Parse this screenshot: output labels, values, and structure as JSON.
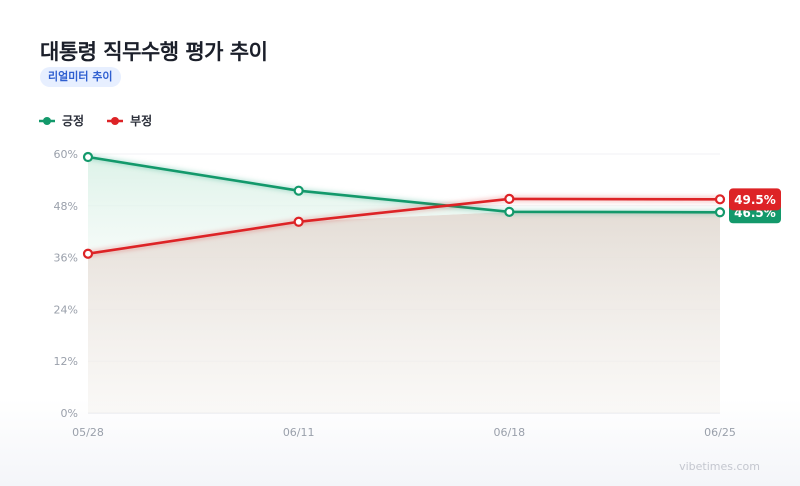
{
  "header": {
    "title": "대통령 직무수행 평가 추이",
    "badge": "리얼미터 추이"
  },
  "watermark": "vibetimes.com",
  "colors": {
    "positive": "#13996b",
    "negative": "#dd2326",
    "badge_bg": "#e7efff",
    "badge_text": "#2f5fd0"
  },
  "chart_data": {
    "type": "line",
    "title": "대통령 직무수행 평가 추이",
    "x": [
      "05/28",
      "06/11",
      "06/18",
      "06/25"
    ],
    "ylim": [
      0,
      60
    ],
    "y_ticks": [
      "0%",
      "12%",
      "24%",
      "36%",
      "48%",
      "60%"
    ],
    "y_tick_values": [
      0,
      12,
      24,
      36,
      48,
      60
    ],
    "grid": true,
    "legend": "top-left",
    "series": [
      {
        "name": "긍정",
        "color": "#13996b",
        "values": [
          59.3,
          51.5,
          46.6,
          46.5
        ],
        "end_label": "46.5%"
      },
      {
        "name": "부정",
        "color": "#dd2326",
        "values": [
          36.9,
          44.3,
          49.6,
          49.5
        ],
        "end_label": "49.5%"
      }
    ]
  }
}
